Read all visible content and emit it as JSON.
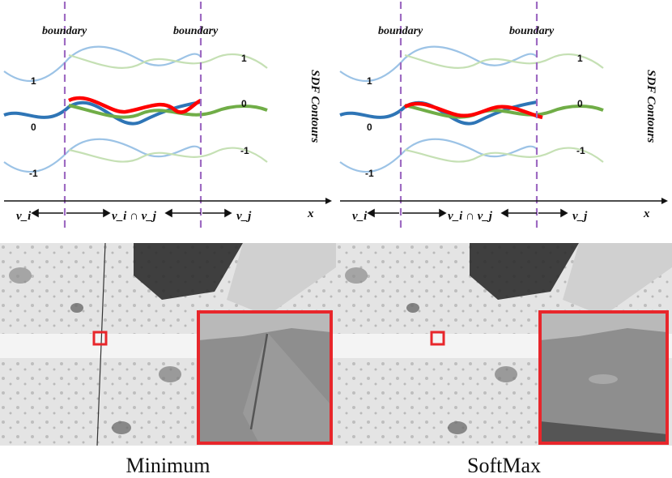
{
  "figure": {
    "panels": [
      {
        "id": "left",
        "caption": "Minimum",
        "boundary_labels": [
          "boundary",
          "boundary"
        ],
        "level_labels_left": [
          "1",
          "0",
          "-1"
        ],
        "level_labels_right": [
          "1",
          "0",
          "-1"
        ],
        "axis": {
          "var": "x",
          "left": "v_i",
          "middle": "v_i ∩ v_j",
          "right": "v_j"
        },
        "side_label": "SDF Contours",
        "fusion_method": "Minimum"
      },
      {
        "id": "right",
        "caption": "SoftMax",
        "boundary_labels": [
          "boundary",
          "boundary"
        ],
        "level_labels_left": [
          "1",
          "0",
          "-1"
        ],
        "level_labels_right": [
          "1",
          "0",
          "-1"
        ],
        "axis": {
          "var": "x",
          "left": "v_i",
          "middle": "v_i ∩ v_j",
          "right": "v_j"
        },
        "side_label": "SDF Contours",
        "fusion_method": "SoftMax"
      }
    ],
    "colors": {
      "light_blue": "#9cc3e6",
      "dark_blue": "#2e75b6",
      "light_green": "#c5e0b4",
      "dark_green": "#70ad47",
      "red": "#ff0000",
      "purple_boundary": "#9e6bc2",
      "inset_border": "#e8262b"
    }
  }
}
